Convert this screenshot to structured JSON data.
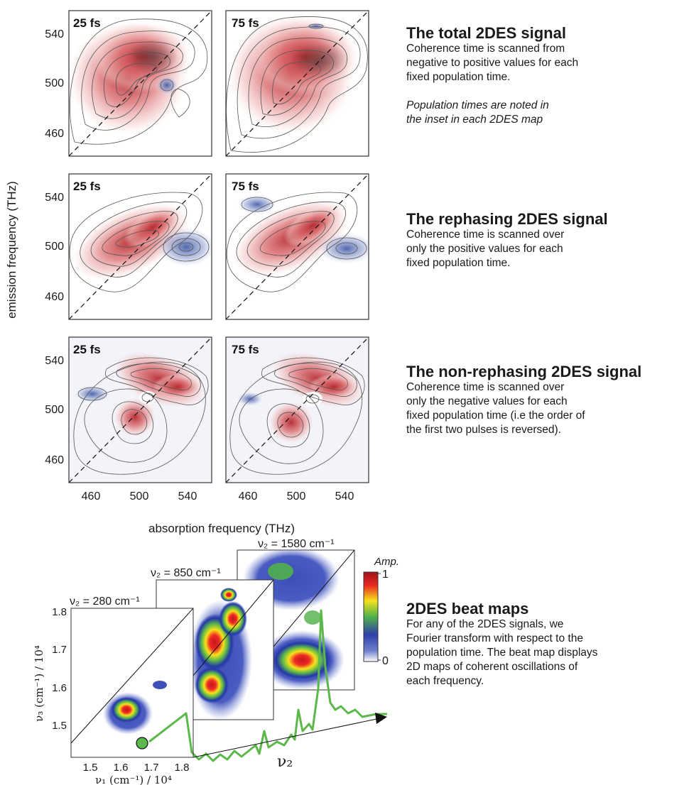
{
  "panels": {
    "rows": [
      {
        "label": "total",
        "times": [
          "25 fs",
          "75 fs"
        ]
      },
      {
        "label": "rephasing",
        "times": [
          "25 fs",
          "75 fs"
        ]
      },
      {
        "label": "non-rephasing",
        "times": [
          "25 fs",
          "75 fs"
        ]
      }
    ],
    "y_ticks": [
      "540",
      "500",
      "460"
    ],
    "x_ticks": [
      "460",
      "500",
      "540"
    ],
    "ylabel": "emission frequency (THz)",
    "xlabel": "absorption frequency (THz)"
  },
  "descriptions": {
    "total": {
      "title": "The total 2DES signal",
      "lines": [
        "Coherence time is scanned from",
        "negative to positive values for each",
        "fixed population time."
      ],
      "note_lines": [
        "Population times are noted in",
        "the inset in each 2DES map"
      ]
    },
    "rephasing": {
      "title": "The rephasing 2DES signal",
      "lines": [
        "Coherence time is scanned over",
        "only the positive values for each",
        "fixed population time."
      ]
    },
    "nonrephasing": {
      "title": "The non-rephasing 2DES signal",
      "lines": [
        "Coherence time is scanned over",
        "only the negative values for each",
        "fixed population time (i.e the order of",
        "the first two pulses is reversed)."
      ]
    },
    "beat": {
      "title": "2DES beat maps",
      "lines": [
        "For any of the 2DES signals, we",
        "Fourier transform with respect to the",
        "population time. The beat map displays",
        "2D maps of coherent oscillations of",
        "each frequency."
      ]
    }
  },
  "beat_maps": {
    "labels": [
      "ν₂ = 280 cm⁻¹",
      "ν₂ = 850 cm⁻¹",
      "ν₂ = 1580 cm⁻¹"
    ],
    "y_ticks": [
      "1.8",
      "1.7",
      "1.6",
      "1.5"
    ],
    "x_ticks": [
      "1.5",
      "1.6",
      "1.7",
      "1.8"
    ],
    "ylabel": "ν₃ (cm⁻¹) / 10⁴",
    "xlabel": "ν₁ (cm⁻¹) / 10⁴",
    "axis_label": "ν₂",
    "colorbar": {
      "title": "Amp.",
      "max": "1",
      "min": "0"
    }
  }
}
